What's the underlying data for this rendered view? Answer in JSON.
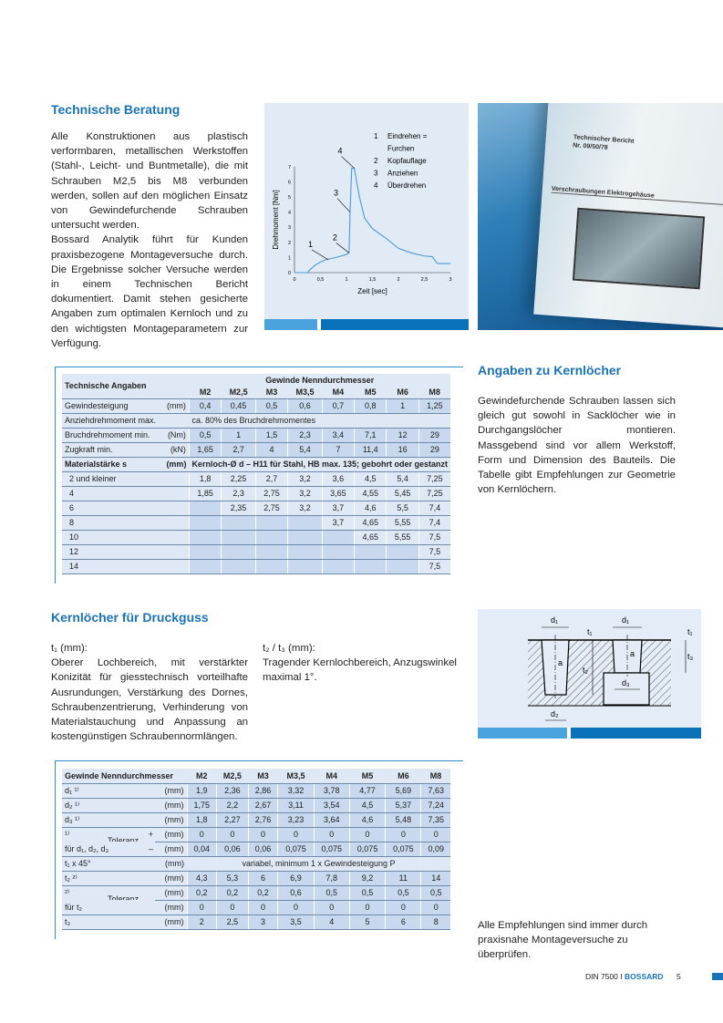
{
  "section1": {
    "title": "Technische Beratung",
    "text": "Alle Konstruktionen aus plastisch verformbaren, metallischen Werkstoffen (Stahl-, Leicht- und Buntmetalle), die mit Schrauben M2,5 bis M8 verbunden werden, sollen auf den möglichen Einsatz von Gewindefurchende Schrauben untersucht werden.",
    "text2": "Bossard Analytik führt für Kunden praxisbezogene Montageversuche durch. Die Ergebnisse solcher Versuche werden in einem Technischen Bericht dokumentiert. Damit stehen gesicherte Angaben zum optimalen Kernloch und zu den wichtigsten Montageparametern zur Verfügung."
  },
  "chart_data": {
    "type": "line",
    "xlabel": "Zeit [sec]",
    "ylabel": "Drehmoment [Nm]",
    "xlim": [
      0,
      3
    ],
    "ylim": [
      0,
      7
    ],
    "xticks": [
      "0",
      "0,5",
      "1",
      "1,5",
      "2",
      "2,5",
      "3"
    ],
    "yticks": [
      "0",
      "1",
      "2",
      "3",
      "4",
      "5",
      "6",
      "7"
    ],
    "x": [
      0,
      0.25,
      0.3,
      0.4,
      0.5,
      0.6,
      0.8,
      1.0,
      1.05,
      1.07,
      1.1,
      1.15,
      1.25,
      1.35,
      1.5,
      1.75,
      2.0,
      2.25,
      2.5,
      2.65,
      2.75,
      3.0
    ],
    "y": [
      0,
      0,
      0.2,
      0.5,
      0.7,
      0.85,
      1.0,
      1.2,
      1.3,
      4.0,
      6.9,
      6.9,
      5.0,
      3.6,
      2.9,
      2.3,
      1.6,
      1.3,
      1.1,
      1.05,
      0.6,
      0.6
    ],
    "annotations": [
      {
        "label": "1",
        "x": 0.65,
        "y": 0.85
      },
      {
        "label": "2",
        "x": 1.05,
        "y": 1.3
      },
      {
        "label": "3",
        "x": 1.07,
        "y": 4.0
      },
      {
        "label": "4",
        "x": 1.15,
        "y": 6.9
      }
    ],
    "legend": [
      {
        "n": "1",
        "t": "Eindrehen ="
      },
      {
        "n": "",
        "t": "Furchen"
      },
      {
        "n": "2",
        "t": "Kopfauflage"
      },
      {
        "n": "3",
        "t": "Anziehen"
      },
      {
        "n": "4",
        "t": "Überdrehen"
      }
    ],
    "color": "#4a9ad6"
  },
  "photo": {
    "lines": [
      "Technischer Bericht",
      "Nr. 09/50/78",
      "Verschraubungen Elektrogehäuse"
    ]
  },
  "table1": {
    "title": "Technische Angaben",
    "group": "Gewinde Nenndurchmesser",
    "columns": [
      "M2",
      "M2,5",
      "M3",
      "M3,5",
      "M4",
      "M5",
      "M6",
      "M8"
    ],
    "rows": [
      {
        "label": "Gewindesteigung",
        "unit": "(mm)",
        "values": [
          "0,4",
          "0,45",
          "0,5",
          "0,6",
          "0,7",
          "0,8",
          "1",
          "1,25"
        ]
      },
      {
        "label": "Anziehdrehmoment max.",
        "unit": "",
        "span": "ca. 80% des Bruchdrehmomentes"
      },
      {
        "label": "Bruchdrehmoment min.",
        "unit": "(Nm)",
        "values": [
          "0,5",
          "1",
          "1,5",
          "2,3",
          "3,4",
          "7,1",
          "12",
          "29"
        ]
      },
      {
        "label": "Zugkraft min.",
        "unit": "(kN)",
        "values": [
          "1,65",
          "2,7",
          "4",
          "5,4",
          "7",
          "11,4",
          "16",
          "29"
        ]
      },
      {
        "label": "Materialstärke s",
        "unit": "(mm)",
        "span": "Kernloch-Ø d – H11 für Stahl, HB max. 135; gebohrt oder gestanzt",
        "bold": true
      },
      {
        "label": "2 und kleiner",
        "unit": "",
        "values": [
          "1,8",
          "2,25",
          "2,7",
          "3,2",
          "3,6",
          "4,5",
          "5,4",
          "7,25"
        ],
        "indent": true
      },
      {
        "label": "4",
        "unit": "",
        "values": [
          "1,85",
          "2,3",
          "2,75",
          "3,2",
          "3,65",
          "4,55",
          "5,45",
          "7,25"
        ],
        "indent": true
      },
      {
        "label": "6",
        "unit": "",
        "values": [
          null,
          "2,35",
          "2,75",
          "3,2",
          "3,7",
          "4,6",
          "5,5",
          "7,4"
        ],
        "indent": true
      },
      {
        "label": "8",
        "unit": "",
        "values": [
          null,
          null,
          null,
          null,
          "3,7",
          "4,65",
          "5,55",
          "7,4"
        ],
        "indent": true
      },
      {
        "label": "10",
        "unit": "",
        "values": [
          null,
          null,
          null,
          null,
          null,
          "4,65",
          "5,55",
          "7,5"
        ],
        "indent": true
      },
      {
        "label": "12",
        "unit": "",
        "values": [
          null,
          null,
          null,
          null,
          null,
          null,
          null,
          "7,5"
        ],
        "indent": true
      },
      {
        "label": "14",
        "unit": "",
        "values": [
          null,
          null,
          null,
          null,
          null,
          null,
          null,
          "7,5"
        ],
        "indent": true
      }
    ]
  },
  "section2": {
    "title": "Angaben zu Kernlöcher",
    "text": "Gewindefurchende Schrauben lassen sich gleich gut sowohl in Sacklöcher wie in Durchgangslöcher montieren. Massgebend sind vor allem Werkstoff, Form und Dimension des Bauteils. Die Tabelle gibt Empfehlungen zur Geometrie von Kernlöchern."
  },
  "section3": {
    "title": "Kernlöcher für Druckguss",
    "col1_head": "t₁ (mm):",
    "col1_text": "Oberer Lochbereich, mit verstärkter Konizität für giesstechnisch vorteilhafte Ausrundungen, Verstärkung des Dornes, Schraubenzentrierung, Verhinderung von Materialstauchung und Anpassung an kostengünstigen Schraubennormlängen.",
    "col2_head": "t₂ / t₃ (mm):",
    "col2_text": "Tragender Kernlochbereich, Anzugswinkel maximal 1°."
  },
  "diagram": {
    "labels": {
      "d1": "d₁",
      "d2": "d₂",
      "d3": "d₃",
      "t1": "t₁",
      "t2": "t₂",
      "t3": "t₃",
      "a": "a"
    }
  },
  "table2": {
    "title": "Gewinde Nenndurchmesser",
    "columns": [
      "M2",
      "M2,5",
      "M3",
      "M3,5",
      "M4",
      "M5",
      "M6",
      "M8"
    ],
    "toleranz": "Toleranz",
    "rows": [
      {
        "label": "d₁ ¹⁾",
        "unit": "(mm)",
        "values": [
          "1,9",
          "2,36",
          "2,86",
          "3,32",
          "3,78",
          "4,77",
          "5,69",
          "7,63"
        ]
      },
      {
        "label": "d₂ ¹⁾",
        "unit": "(mm)",
        "values": [
          "1,75",
          "2,2",
          "2,67",
          "3,11",
          "3,54",
          "4,5",
          "5,37",
          "7,24"
        ]
      },
      {
        "label": "d₃ ¹⁾",
        "unit": "(mm)",
        "values": [
          "1,8",
          "2,27",
          "2,76",
          "3,23",
          "3,64",
          "4,6",
          "5,48",
          "7,35"
        ]
      },
      {
        "label": "¹⁾",
        "sign": "+",
        "unit": "(mm)",
        "values": [
          "0",
          "0",
          "0",
          "0",
          "0",
          "0",
          "0",
          "0"
        ],
        "tol": true
      },
      {
        "label": "für d₁, d₂, d₃",
        "sign": "–",
        "unit": "(mm)",
        "values": [
          "0,04",
          "0,06",
          "0,06",
          "0,075",
          "0,075",
          "0,075",
          "0,075",
          "0,09"
        ]
      },
      {
        "label": "t₁ x 45°",
        "unit": "(mm)",
        "span": "variabel, minimum 1 x Gewindesteigung P"
      },
      {
        "label": "t₂ ²⁾",
        "unit": "(mm)",
        "values": [
          "4,3",
          "5,3",
          "6",
          "6,9",
          "7,8",
          "9,2",
          "11",
          "14"
        ]
      },
      {
        "label": "²⁾",
        "unit": "(mm)",
        "values": [
          "0,2",
          "0,2",
          "0,2",
          "0,6",
          "0,5",
          "0,5",
          "0,5",
          "0,5"
        ],
        "tol": true
      },
      {
        "label": "für t₂",
        "unit": "(mm)",
        "values": [
          "0",
          "0",
          "0",
          "0",
          "0",
          "0",
          "0",
          "0"
        ]
      },
      {
        "label": "t₃",
        "unit": "(mm)",
        "values": [
          "2",
          "2,5",
          "3",
          "3,5",
          "4",
          "5",
          "6",
          "8"
        ]
      }
    ]
  },
  "note": "Alle Empfehlungen sind immer durch praxisnahe Montageversuche zu überprüfen.",
  "footer": {
    "doc": "DIN 7500",
    "sep": "I",
    "brand": "BOSSARD",
    "page": "5"
  },
  "colors": {
    "accent": "#1a73b8",
    "light": "#4aa3dc",
    "dark": "#0a72b8",
    "cell": "#c8d9ef"
  }
}
